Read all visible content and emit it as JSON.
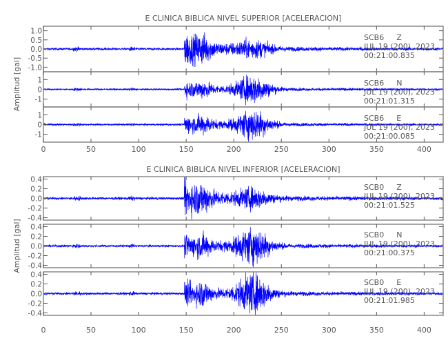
{
  "chart_data": [
    {
      "type": "line",
      "title": "E CLINICA BIBLICA NIVEL SUPERIOR [ACELERACION]",
      "ylabel": "Amplitud [gal]",
      "xlabel": "",
      "xlim": [
        0,
        420
      ],
      "xticks": [
        0,
        50,
        100,
        150,
        200,
        250,
        300,
        350,
        400
      ],
      "trace_color": "#0000ff",
      "traces": [
        {
          "station": "SCB6",
          "component": "Z",
          "date": "JUL 19 (200), 2023",
          "time": "00:21:00.835",
          "ylim": [
            -1.25,
            1.25
          ],
          "yticks": [
            1.0,
            0.5,
            0.0,
            -0.5,
            -1.0
          ],
          "yticklabels": [
            "1.0",
            "0.5",
            "0.0",
            "-0.5",
            "-1.0"
          ],
          "onset_s": 148,
          "peak_s": 150,
          "peak_amplitude": 1.1,
          "strong_phase_s": 220
        },
        {
          "station": "SCB6",
          "component": "N",
          "date": "JUL 19 (200), 2023",
          "time": "00:21:01.315",
          "ylim": [
            -1.8,
            1.8
          ],
          "yticks": [
            1,
            0,
            -1
          ],
          "yticklabels": [
            "1",
            "0",
            "-1"
          ],
          "onset_s": 148,
          "peak_s": 220,
          "peak_amplitude": 1.5,
          "strong_phase_s": 220
        },
        {
          "station": "SCB6",
          "component": "E",
          "date": "JUL 19 (200), 2023",
          "time": "00:21:00.085",
          "ylim": [
            -1.8,
            1.8
          ],
          "yticks": [
            1,
            0,
            -1
          ],
          "yticklabels": [
            "1",
            "0",
            "-1"
          ],
          "onset_s": 148,
          "peak_s": 222,
          "peak_amplitude": 1.6,
          "strong_phase_s": 220
        }
      ]
    },
    {
      "type": "line",
      "title": "E CLINICA BIBLICA NIVEL INFERIOR [ACELERACION]",
      "ylabel": "Amplitud [gal]",
      "xlabel": "",
      "xlim": [
        0,
        420
      ],
      "xticks": [
        0,
        50,
        100,
        150,
        200,
        250,
        300,
        350,
        400
      ],
      "trace_color": "#0000ff",
      "traces": [
        {
          "station": "SCB0",
          "component": "Z",
          "date": "JUL 19 (200), 2023",
          "time": "00:21:01.525",
          "ylim": [
            -0.45,
            0.45
          ],
          "yticks": [
            0.4,
            0.2,
            0.0,
            -0.2,
            -0.4
          ],
          "yticklabels": [
            "0.4",
            "0.2",
            "0.0",
            "-0.2",
            "-0.4"
          ],
          "onset_s": 148,
          "peak_s": 150,
          "peak_amplitude": 0.45,
          "strong_phase_s": 220
        },
        {
          "station": "SCB0",
          "component": "N",
          "date": "JUL 19 (200), 2023",
          "time": "00:21:00.375",
          "ylim": [
            -0.45,
            0.45
          ],
          "yticks": [
            0.4,
            0.2,
            0.0,
            -0.2,
            -0.4
          ],
          "yticklabels": [
            "0.4",
            "0.2",
            "0.0",
            "-0.2",
            "-0.4"
          ],
          "onset_s": 148,
          "peak_s": 220,
          "peak_amplitude": 0.4,
          "strong_phase_s": 220
        },
        {
          "station": "SCB0",
          "component": "E",
          "date": "JUL 19 (200), 2023",
          "time": "00:21:01.985",
          "ylim": [
            -0.45,
            0.45
          ],
          "yticks": [
            0.4,
            0.2,
            0.0,
            -0.2,
            -0.4
          ],
          "yticklabels": [
            "0.4",
            "0.2",
            "0.0",
            "-0.2",
            "-0.4"
          ],
          "onset_s": 148,
          "peak_s": 222,
          "peak_amplitude": 0.42,
          "strong_phase_s": 220
        }
      ]
    }
  ]
}
